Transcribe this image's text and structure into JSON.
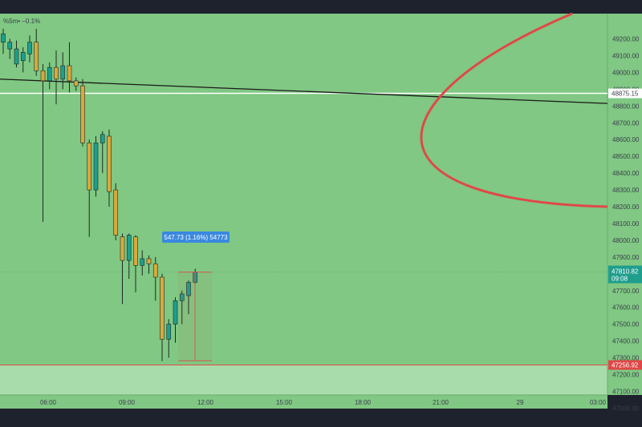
{
  "chart": {
    "symbol_tag": "",
    "indicator_text": "%5m• −0.1%",
    "price_tags": {
      "black_line": "48875.15",
      "current_price": "47810.82",
      "countdown": "09:08",
      "red_line": "47256.92"
    },
    "measure_label": "547.73 (1.16%) 54773"
  },
  "colors": {
    "frame": "#1e222d",
    "plot_bg": "#80c883",
    "lower_zone": "#a9dcab",
    "bull": "#1f9e8e",
    "bear": "#d9a93d",
    "red": "#e04848",
    "white_line": "#ffffff",
    "black_line": "#1a1a1a",
    "measure": "#3a89e0"
  },
  "chart_data": {
    "type": "candlestick",
    "y_ticks": [
      49200,
      49100,
      49000,
      48900,
      48800,
      48700,
      48600,
      48500,
      48400,
      48300,
      48200,
      48100,
      48000,
      47900,
      47800,
      47700,
      47600,
      47500,
      47400,
      47300,
      47200,
      47100,
      47000
    ],
    "y_tick_labels": [
      "49200.00",
      "49100.00",
      "49000.00",
      "48900.00",
      "48800.00",
      "48700.00",
      "48600.00",
      "48500.00",
      "48400.00",
      "48300.00",
      "48200.00",
      "48100.00",
      "48000.00",
      "47900.00",
      "47800.00",
      "47700.00",
      "47600.00",
      "47500.00",
      "47400.00",
      "47300.00",
      "47200.00",
      "47100.00",
      "47000.00"
    ],
    "x_ticks": [
      "06:00",
      "09:00",
      "12:00",
      "15:00",
      "18:00",
      "21:00",
      "29",
      "03:00"
    ],
    "candles": [
      {
        "o": 49180,
        "h": 49260,
        "l": 49110,
        "c": 49230
      },
      {
        "o": 49140,
        "h": 49200,
        "l": 49080,
        "c": 49180
      },
      {
        "o": 49050,
        "h": 49190,
        "l": 49030,
        "c": 49140
      },
      {
        "o": 49070,
        "h": 49150,
        "l": 49000,
        "c": 49120
      },
      {
        "o": 49110,
        "h": 49220,
        "l": 49060,
        "c": 49180
      },
      {
        "o": 49180,
        "h": 49260,
        "l": 48980,
        "c": 49010
      },
      {
        "o": 49010,
        "h": 49050,
        "l": 48110,
        "c": 48950
      },
      {
        "o": 48950,
        "h": 49060,
        "l": 48900,
        "c": 49030
      },
      {
        "o": 49030,
        "h": 49130,
        "l": 48810,
        "c": 48960
      },
      {
        "o": 48960,
        "h": 49120,
        "l": 48900,
        "c": 49040
      },
      {
        "o": 49040,
        "h": 49180,
        "l": 48880,
        "c": 48950
      },
      {
        "o": 48950,
        "h": 48970,
        "l": 48890,
        "c": 48920
      },
      {
        "o": 48920,
        "h": 48960,
        "l": 48560,
        "c": 48580
      },
      {
        "o": 48580,
        "h": 48600,
        "l": 48020,
        "c": 48300
      },
      {
        "o": 48300,
        "h": 48620,
        "l": 48260,
        "c": 48580
      },
      {
        "o": 48580,
        "h": 48650,
        "l": 48400,
        "c": 48630
      },
      {
        "o": 48620,
        "h": 48660,
        "l": 48200,
        "c": 48290
      },
      {
        "o": 48300,
        "h": 48340,
        "l": 48000,
        "c": 48030
      },
      {
        "o": 48020,
        "h": 48040,
        "l": 47620,
        "c": 47880
      },
      {
        "o": 47880,
        "h": 48040,
        "l": 47770,
        "c": 48030
      },
      {
        "o": 48020,
        "h": 48030,
        "l": 47690,
        "c": 47850
      },
      {
        "o": 47850,
        "h": 47940,
        "l": 47790,
        "c": 47890
      },
      {
        "o": 47890,
        "h": 47910,
        "l": 47800,
        "c": 47860
      },
      {
        "o": 47860,
        "h": 47900,
        "l": 47640,
        "c": 47780
      },
      {
        "o": 47780,
        "h": 47800,
        "l": 47280,
        "c": 47410
      },
      {
        "o": 47410,
        "h": 47530,
        "l": 47300,
        "c": 47500
      },
      {
        "o": 47500,
        "h": 47660,
        "l": 47390,
        "c": 47640
      },
      {
        "o": 47640,
        "h": 47700,
        "l": 47500,
        "c": 47680
      },
      {
        "o": 47670,
        "h": 47760,
        "l": 47560,
        "c": 47750
      },
      {
        "o": 47750,
        "h": 47830,
        "l": 47740,
        "c": 47810
      }
    ],
    "horizontal_lines": {
      "white": 48875.15,
      "red_zone_top": 47256.92
    },
    "trend_line": {
      "from_price": 48960,
      "to_price": 48815
    },
    "ylim": [
      46950,
      49320
    ]
  }
}
